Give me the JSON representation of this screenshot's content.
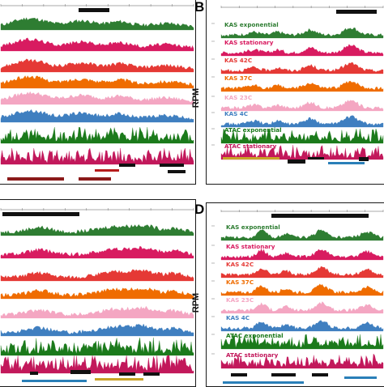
{
  "panel_letters": {
    "B": "B",
    "D": "D"
  },
  "axis_label": "RPM",
  "track_labels": [
    {
      "label": "KAS exponential",
      "color": "#2e7d32"
    },
    {
      "label": "KAS stationary",
      "color": "#d81b60"
    },
    {
      "label": "KAS 42C",
      "color": "#e53935"
    },
    {
      "label": "KAS 37C",
      "color": "#ef6c00"
    },
    {
      "label": "KAS 23C",
      "color": "#f4a6c2"
    },
    {
      "label": "KAS 4C",
      "color": "#3f7fc0"
    },
    {
      "label": "ATAC exponential",
      "color": "#1b7a1b"
    },
    {
      "label": "ATAC stationary",
      "color": "#c2185b"
    }
  ],
  "colors": {
    "kas_exp": "#2e7d32",
    "kas_stat": "#d81b60",
    "kas_42": "#e53935",
    "kas_37": "#ef6c00",
    "kas_23": "#f4a6c2",
    "kas_4": "#3f7fc0",
    "atac_exp": "#1b7a1b",
    "atac_stat": "#c2185b",
    "panel_border": "#1a1a1a"
  }
}
